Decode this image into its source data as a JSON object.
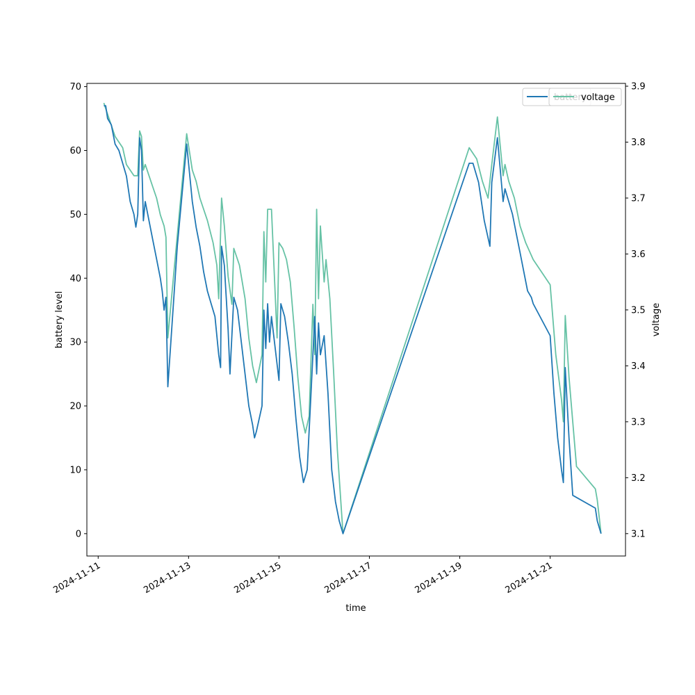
{
  "chart_data": {
    "type": "line",
    "xlabel": "time",
    "ylabel_left": "battery level",
    "ylabel_right": "voltage",
    "xlim": [
      "2024-11-10 18:00",
      "2024-11-22 16:00"
    ],
    "ylim_left": [
      -3.5,
      70.5
    ],
    "ylim_right": [
      3.06,
      3.905
    ],
    "x_ticks": [
      "2024-11-11",
      "2024-11-13",
      "2024-11-15",
      "2024-11-17",
      "2024-11-19",
      "2024-11-21"
    ],
    "y_ticks_left": [
      0,
      10,
      20,
      30,
      40,
      50,
      60,
      70
    ],
    "y_ticks_right": [
      3.1,
      3.2,
      3.3,
      3.4,
      3.5,
      3.6,
      3.7,
      3.8,
      3.9
    ],
    "legend": {
      "placement": "top-right",
      "entries": [
        "battery",
        "voltage"
      ]
    },
    "grid": false,
    "series": [
      {
        "name": "battery",
        "axis": "left",
        "color": "#1f77b4",
        "points": [
          [
            "2024-11-11 03:00",
            67
          ],
          [
            "2024-11-11 04:00",
            67
          ],
          [
            "2024-11-11 05:00",
            65
          ],
          [
            "2024-11-11 07:00",
            64
          ],
          [
            "2024-11-11 09:00",
            61
          ],
          [
            "2024-11-11 11:00",
            60
          ],
          [
            "2024-11-11 13:00",
            58
          ],
          [
            "2024-11-11 15:00",
            56
          ],
          [
            "2024-11-11 17:00",
            52
          ],
          [
            "2024-11-11 19:00",
            50
          ],
          [
            "2024-11-11 20:00",
            48
          ],
          [
            "2024-11-11 21:00",
            50
          ],
          [
            "2024-11-11 22:00",
            62
          ],
          [
            "2024-11-11 23:00",
            60
          ],
          [
            "2024-11-12 00:00",
            49
          ],
          [
            "2024-11-12 01:00",
            52
          ],
          [
            "2024-11-12 03:00",
            49
          ],
          [
            "2024-11-12 05:00",
            46
          ],
          [
            "2024-11-12 07:00",
            43
          ],
          [
            "2024-11-12 09:00",
            40
          ],
          [
            "2024-11-12 10:00",
            38
          ],
          [
            "2024-11-12 11:00",
            35
          ],
          [
            "2024-11-12 12:00",
            37
          ],
          [
            "2024-11-12 13:00",
            23
          ],
          [
            "2024-11-12 18:00",
            45
          ],
          [
            "2024-11-12 23:00",
            61
          ],
          [
            "2024-11-13 02:00",
            52
          ],
          [
            "2024-11-13 04:00",
            48
          ],
          [
            "2024-11-13 06:00",
            45
          ],
          [
            "2024-11-13 08:00",
            41
          ],
          [
            "2024-11-13 10:00",
            38
          ],
          [
            "2024-11-13 12:00",
            36
          ],
          [
            "2024-11-13 14:00",
            34
          ],
          [
            "2024-11-13 16:00",
            28
          ],
          [
            "2024-11-13 17:00",
            26
          ],
          [
            "2024-11-13 17:30",
            45
          ],
          [
            "2024-11-13 19:00",
            42
          ],
          [
            "2024-11-13 21:00",
            32
          ],
          [
            "2024-11-13 22:00",
            25
          ],
          [
            "2024-11-14 00:00",
            37
          ],
          [
            "2024-11-14 02:00",
            35
          ],
          [
            "2024-11-14 04:00",
            30
          ],
          [
            "2024-11-14 06:00",
            25
          ],
          [
            "2024-11-14 08:00",
            20
          ],
          [
            "2024-11-14 10:00",
            17
          ],
          [
            "2024-11-14 11:00",
            15
          ],
          [
            "2024-11-14 12:00",
            16
          ],
          [
            "2024-11-14 15:00",
            20
          ],
          [
            "2024-11-14 16:00",
            35
          ],
          [
            "2024-11-14 17:00",
            29
          ],
          [
            "2024-11-14 18:00",
            36
          ],
          [
            "2024-11-14 19:00",
            30
          ],
          [
            "2024-11-14 20:00",
            34
          ],
          [
            "2024-11-15 00:00",
            24
          ],
          [
            "2024-11-15 01:00",
            36
          ],
          [
            "2024-11-15 03:00",
            34
          ],
          [
            "2024-11-15 05:00",
            30
          ],
          [
            "2024-11-15 07:00",
            25
          ],
          [
            "2024-11-15 09:00",
            18
          ],
          [
            "2024-11-15 11:00",
            12
          ],
          [
            "2024-11-15 13:00",
            8
          ],
          [
            "2024-11-15 15:00",
            10
          ],
          [
            "2024-11-15 17:00",
            22
          ],
          [
            "2024-11-15 18:00",
            28
          ],
          [
            "2024-11-15 19:00",
            34
          ],
          [
            "2024-11-15 20:00",
            25
          ],
          [
            "2024-11-15 21:00",
            33
          ],
          [
            "2024-11-15 22:00",
            28
          ],
          [
            "2024-11-16 00:00",
            31
          ],
          [
            "2024-11-16 02:00",
            22
          ],
          [
            "2024-11-16 04:00",
            10
          ],
          [
            "2024-11-16 06:00",
            5
          ],
          [
            "2024-11-16 08:00",
            2
          ],
          [
            "2024-11-16 10:00",
            0
          ],
          [
            "2024-11-19 05:00",
            58
          ],
          [
            "2024-11-19 07:00",
            58
          ],
          [
            "2024-11-19 10:00",
            55
          ],
          [
            "2024-11-19 13:00",
            49
          ],
          [
            "2024-11-19 16:00",
            45
          ],
          [
            "2024-11-19 17:00",
            55
          ],
          [
            "2024-11-19 20:00",
            62
          ],
          [
            "2024-11-19 23:00",
            52
          ],
          [
            "2024-11-20 00:00",
            54
          ],
          [
            "2024-11-20 02:00",
            52
          ],
          [
            "2024-11-20 04:00",
            50
          ],
          [
            "2024-11-20 06:00",
            47
          ],
          [
            "2024-11-20 08:00",
            44
          ],
          [
            "2024-11-20 10:00",
            41
          ],
          [
            "2024-11-20 12:00",
            38
          ],
          [
            "2024-11-20 14:00",
            37
          ],
          [
            "2024-11-20 15:00",
            36
          ],
          [
            "2024-11-21 00:00",
            31
          ],
          [
            "2024-11-21 02:00",
            22
          ],
          [
            "2024-11-21 04:00",
            15
          ],
          [
            "2024-11-21 06:00",
            10
          ],
          [
            "2024-11-21 07:00",
            8
          ],
          [
            "2024-11-21 08:00",
            26
          ],
          [
            "2024-11-21 10:00",
            15
          ],
          [
            "2024-11-21 12:00",
            6
          ],
          [
            "2024-11-22 00:00",
            4
          ],
          [
            "2024-11-22 01:00",
            2
          ],
          [
            "2024-11-22 03:00",
            0
          ]
        ]
      },
      {
        "name": "voltage",
        "axis": "right",
        "color": "#66c2a5",
        "points": [
          [
            "2024-11-11 03:00",
            3.87
          ],
          [
            "2024-11-11 05:00",
            3.85
          ],
          [
            "2024-11-11 07:00",
            3.83
          ],
          [
            "2024-11-11 09:00",
            3.81
          ],
          [
            "2024-11-11 11:00",
            3.8
          ],
          [
            "2024-11-11 13:00",
            3.79
          ],
          [
            "2024-11-11 15:00",
            3.76
          ],
          [
            "2024-11-11 17:00",
            3.75
          ],
          [
            "2024-11-11 19:00",
            3.74
          ],
          [
            "2024-11-11 21:00",
            3.74
          ],
          [
            "2024-11-11 22:00",
            3.82
          ],
          [
            "2024-11-11 23:00",
            3.81
          ],
          [
            "2024-11-12 00:00",
            3.75
          ],
          [
            "2024-11-12 01:00",
            3.76
          ],
          [
            "2024-11-12 03:00",
            3.74
          ],
          [
            "2024-11-12 05:00",
            3.72
          ],
          [
            "2024-11-12 07:00",
            3.7
          ],
          [
            "2024-11-12 09:00",
            3.67
          ],
          [
            "2024-11-12 11:00",
            3.65
          ],
          [
            "2024-11-12 12:00",
            3.63
          ],
          [
            "2024-11-12 13:00",
            3.45
          ],
          [
            "2024-11-12 23:00",
            3.815
          ],
          [
            "2024-11-13 02:00",
            3.75
          ],
          [
            "2024-11-13 04:00",
            3.73
          ],
          [
            "2024-11-13 06:00",
            3.7
          ],
          [
            "2024-11-13 08:00",
            3.68
          ],
          [
            "2024-11-13 10:00",
            3.66
          ],
          [
            "2024-11-13 13:00",
            3.62
          ],
          [
            "2024-11-13 15:00",
            3.58
          ],
          [
            "2024-11-13 16:00",
            3.52
          ],
          [
            "2024-11-13 17:30",
            3.7
          ],
          [
            "2024-11-13 19:00",
            3.65
          ],
          [
            "2024-11-13 21:00",
            3.56
          ],
          [
            "2024-11-13 23:00",
            3.51
          ],
          [
            "2024-11-14 00:00",
            3.61
          ],
          [
            "2024-11-14 03:00",
            3.58
          ],
          [
            "2024-11-14 06:00",
            3.52
          ],
          [
            "2024-11-14 08:00",
            3.45
          ],
          [
            "2024-11-14 10:00",
            3.4
          ],
          [
            "2024-11-14 12:00",
            3.37
          ],
          [
            "2024-11-14 15:00",
            3.42
          ],
          [
            "2024-11-14 16:00",
            3.64
          ],
          [
            "2024-11-14 17:00",
            3.55
          ],
          [
            "2024-11-14 18:00",
            3.68
          ],
          [
            "2024-11-14 20:00",
            3.68
          ],
          [
            "2024-11-14 23:00",
            3.45
          ],
          [
            "2024-11-15 00:00",
            3.62
          ],
          [
            "2024-11-15 02:00",
            3.61
          ],
          [
            "2024-11-15 04:00",
            3.59
          ],
          [
            "2024-11-15 06:00",
            3.55
          ],
          [
            "2024-11-15 08:00",
            3.47
          ],
          [
            "2024-11-15 10:00",
            3.38
          ],
          [
            "2024-11-15 12:00",
            3.31
          ],
          [
            "2024-11-15 14:00",
            3.28
          ],
          [
            "2024-11-15 16:00",
            3.31
          ],
          [
            "2024-11-15 18:00",
            3.51
          ],
          [
            "2024-11-15 19:00",
            3.42
          ],
          [
            "2024-11-15 20:00",
            3.68
          ],
          [
            "2024-11-15 21:00",
            3.52
          ],
          [
            "2024-11-15 22:00",
            3.65
          ],
          [
            "2024-11-16 00:00",
            3.55
          ],
          [
            "2024-11-16 01:00",
            3.59
          ],
          [
            "2024-11-16 03:00",
            3.52
          ],
          [
            "2024-11-16 05:00",
            3.39
          ],
          [
            "2024-11-16 07:00",
            3.25
          ],
          [
            "2024-11-16 09:00",
            3.15
          ],
          [
            "2024-11-16 10:00",
            3.1
          ],
          [
            "2024-11-19 05:00",
            3.79
          ],
          [
            "2024-11-19 09:00",
            3.77
          ],
          [
            "2024-11-19 12:00",
            3.73
          ],
          [
            "2024-11-19 15:00",
            3.7
          ],
          [
            "2024-11-19 17:00",
            3.76
          ],
          [
            "2024-11-19 20:00",
            3.845
          ],
          [
            "2024-11-19 23:00",
            3.74
          ],
          [
            "2024-11-20 00:00",
            3.76
          ],
          [
            "2024-11-20 02:00",
            3.73
          ],
          [
            "2024-11-20 05:00",
            3.7
          ],
          [
            "2024-11-20 08:00",
            3.65
          ],
          [
            "2024-11-20 11:00",
            3.62
          ],
          [
            "2024-11-20 15:00",
            3.59
          ],
          [
            "2024-11-21 00:00",
            3.545
          ],
          [
            "2024-11-21 03:00",
            3.42
          ],
          [
            "2024-11-21 06:00",
            3.34
          ],
          [
            "2024-11-21 07:00",
            3.3
          ],
          [
            "2024-11-21 08:00",
            3.49
          ],
          [
            "2024-11-21 10:00",
            3.38
          ],
          [
            "2024-11-21 14:00",
            3.22
          ],
          [
            "2024-11-22 00:00",
            3.18
          ],
          [
            "2024-11-22 01:00",
            3.16
          ],
          [
            "2024-11-22 03:00",
            3.1
          ]
        ]
      }
    ]
  }
}
